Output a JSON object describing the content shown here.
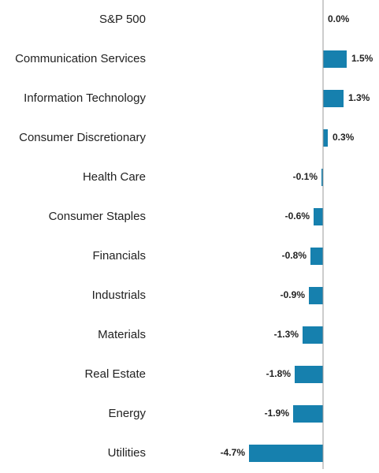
{
  "chart_data": {
    "type": "hbar",
    "categories": [
      "S&P 500",
      "Communication Services",
      "Information Technology",
      "Consumer Discretionary",
      "Health Care",
      "Consumer Staples",
      "Financials",
      "Industrials",
      "Materials",
      "Real Estate",
      "Energy",
      "Utilities"
    ],
    "values": [
      0.0,
      1.5,
      1.3,
      0.3,
      -0.1,
      -0.6,
      -0.8,
      -0.9,
      -1.3,
      -1.8,
      -1.9,
      -4.7
    ],
    "value_labels": [
      "0.0%",
      "1.5%",
      "1.3%",
      "0.3%",
      "-0.1%",
      "-0.6%",
      "-0.8%",
      "-0.9%",
      "-1.3%",
      "-1.8%",
      "-1.9%",
      "-4.7%"
    ],
    "color": "#1680ae",
    "xlim": [
      -5,
      2
    ]
  }
}
